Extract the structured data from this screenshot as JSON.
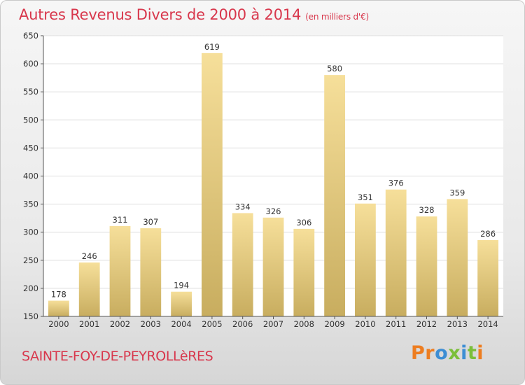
{
  "header": {
    "title": "Autres Revenus Divers de 2000 à 2014",
    "unit": "(en milliers d'€)"
  },
  "footer": {
    "commune": "SAINTE-FOY-DE-PEYROLLèRES",
    "logo": "Proxiti"
  },
  "colors": {
    "title": "#d8374c",
    "bar_light": "#f6df9a",
    "bar_dark": "#c8ad5f",
    "grid": "#dddddd",
    "logo_letters": [
      "#ed7d20",
      "#ed7d20",
      "#3d8ed4",
      "#7bbf3a",
      "#3d8ed4",
      "#7bbf3a",
      "#ed7d20"
    ]
  },
  "chart_data": {
    "type": "bar",
    "categories": [
      "2000",
      "2001",
      "2002",
      "2003",
      "2004",
      "2005",
      "2006",
      "2007",
      "2008",
      "2009",
      "2010",
      "2011",
      "2012",
      "2013",
      "2014"
    ],
    "values": [
      178,
      246,
      311,
      307,
      194,
      619,
      334,
      326,
      306,
      580,
      351,
      376,
      328,
      359,
      286
    ],
    "title": "Autres Revenus Divers de 2000 à 2014",
    "unit": "(en milliers d'€)",
    "xlabel": "",
    "ylabel": "",
    "ylim": [
      150,
      650
    ],
    "yticks": [
      150,
      200,
      250,
      300,
      350,
      400,
      450,
      500,
      550,
      600,
      650
    ],
    "grid": true,
    "data_labels": true
  }
}
